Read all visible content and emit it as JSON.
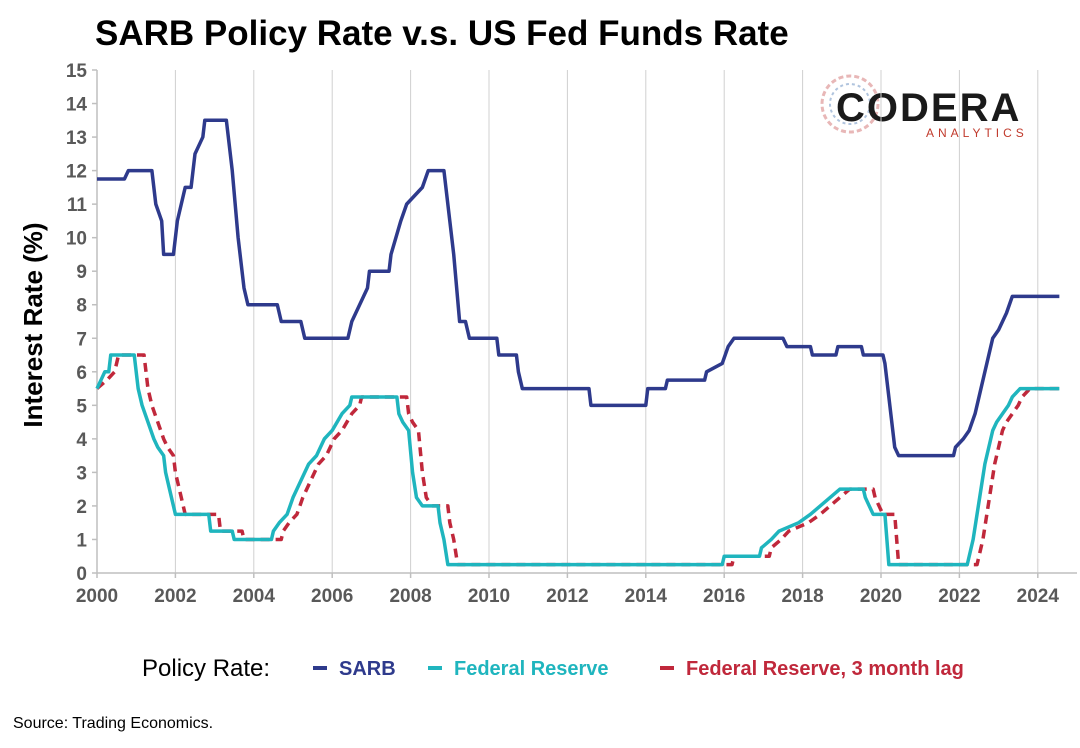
{
  "chart_data": {
    "type": "line",
    "title": "SARB Policy Rate v.s. US Fed Funds Rate",
    "ylabel": "Interest Rate (%)",
    "xlabel": "",
    "xlim": [
      2000,
      2025
    ],
    "ylim": [
      0,
      15
    ],
    "x_ticks": [
      "2000",
      "2002",
      "2004",
      "2006",
      "2008",
      "2010",
      "2012",
      "2014",
      "2016",
      "2018",
      "2020",
      "2022",
      "2024"
    ],
    "y_ticks": [
      "0",
      "1",
      "2",
      "3",
      "4",
      "5",
      "6",
      "7",
      "8",
      "9",
      "10",
      "11",
      "12",
      "13",
      "14",
      "15"
    ],
    "grid": "vertical",
    "legend": {
      "placement": "bottom",
      "prefix": "Policy Rate:",
      "entries": [
        "SARB",
        "Federal Reserve",
        "Federal Reserve, 3 month lag"
      ]
    },
    "source": "Source: Trading Economics.",
    "logo": {
      "main": "CODERA",
      "sub": "ANALYTICS"
    },
    "series": [
      {
        "name": "SARB",
        "color": "#2E3A8C",
        "style": "solid",
        "points": [
          [
            2000.0,
            11.75
          ],
          [
            2000.7,
            11.75
          ],
          [
            2000.8,
            12.0
          ],
          [
            2001.4,
            12.0
          ],
          [
            2001.5,
            11.0
          ],
          [
            2001.65,
            10.5
          ],
          [
            2001.7,
            9.5
          ],
          [
            2001.95,
            9.5
          ],
          [
            2002.05,
            10.5
          ],
          [
            2002.25,
            11.5
          ],
          [
            2002.4,
            11.5
          ],
          [
            2002.5,
            12.5
          ],
          [
            2002.7,
            13.0
          ],
          [
            2002.75,
            13.5
          ],
          [
            2003.3,
            13.5
          ],
          [
            2003.45,
            12.0
          ],
          [
            2003.6,
            10.0
          ],
          [
            2003.75,
            8.5
          ],
          [
            2003.85,
            8.0
          ],
          [
            2004.6,
            8.0
          ],
          [
            2004.7,
            7.5
          ],
          [
            2005.2,
            7.5
          ],
          [
            2005.3,
            7.0
          ],
          [
            2006.4,
            7.0
          ],
          [
            2006.5,
            7.5
          ],
          [
            2006.7,
            8.0
          ],
          [
            2006.9,
            8.5
          ],
          [
            2006.95,
            9.0
          ],
          [
            2007.45,
            9.0
          ],
          [
            2007.5,
            9.5
          ],
          [
            2007.75,
            10.5
          ],
          [
            2007.9,
            11.0
          ],
          [
            2008.3,
            11.5
          ],
          [
            2008.45,
            12.0
          ],
          [
            2008.85,
            12.0
          ],
          [
            2009.0,
            10.5
          ],
          [
            2009.1,
            9.5
          ],
          [
            2009.25,
            7.5
          ],
          [
            2009.4,
            7.5
          ],
          [
            2009.5,
            7.0
          ],
          [
            2010.2,
            7.0
          ],
          [
            2010.25,
            6.5
          ],
          [
            2010.7,
            6.5
          ],
          [
            2010.75,
            6.0
          ],
          [
            2010.85,
            5.5
          ],
          [
            2012.55,
            5.5
          ],
          [
            2012.6,
            5.0
          ],
          [
            2014.0,
            5.0
          ],
          [
            2014.05,
            5.5
          ],
          [
            2014.5,
            5.5
          ],
          [
            2014.55,
            5.75
          ],
          [
            2015.5,
            5.75
          ],
          [
            2015.55,
            6.0
          ],
          [
            2015.95,
            6.25
          ],
          [
            2016.1,
            6.75
          ],
          [
            2016.25,
            7.0
          ],
          [
            2017.5,
            7.0
          ],
          [
            2017.6,
            6.75
          ],
          [
            2018.2,
            6.75
          ],
          [
            2018.25,
            6.5
          ],
          [
            2018.85,
            6.5
          ],
          [
            2018.9,
            6.75
          ],
          [
            2019.5,
            6.75
          ],
          [
            2019.55,
            6.5
          ],
          [
            2020.05,
            6.5
          ],
          [
            2020.1,
            6.25
          ],
          [
            2020.2,
            5.25
          ],
          [
            2020.3,
            4.25
          ],
          [
            2020.35,
            3.75
          ],
          [
            2020.45,
            3.5
          ],
          [
            2021.85,
            3.5
          ],
          [
            2021.9,
            3.75
          ],
          [
            2022.1,
            4.0
          ],
          [
            2022.25,
            4.25
          ],
          [
            2022.4,
            4.75
          ],
          [
            2022.55,
            5.5
          ],
          [
            2022.7,
            6.25
          ],
          [
            2022.85,
            7.0
          ],
          [
            2023.0,
            7.25
          ],
          [
            2023.1,
            7.5
          ],
          [
            2023.2,
            7.75
          ],
          [
            2023.35,
            8.25
          ],
          [
            2024.55,
            8.25
          ]
        ]
      },
      {
        "name": "Federal Reserve",
        "color": "#1FB5BE",
        "style": "solid",
        "points": [
          [
            2000.0,
            5.5
          ],
          [
            2000.1,
            5.75
          ],
          [
            2000.2,
            6.0
          ],
          [
            2000.3,
            6.0
          ],
          [
            2000.35,
            6.5
          ],
          [
            2000.95,
            6.5
          ],
          [
            2001.05,
            5.5
          ],
          [
            2001.15,
            5.0
          ],
          [
            2001.3,
            4.5
          ],
          [
            2001.45,
            4.0
          ],
          [
            2001.55,
            3.75
          ],
          [
            2001.7,
            3.5
          ],
          [
            2001.75,
            3.0
          ],
          [
            2001.85,
            2.5
          ],
          [
            2001.95,
            2.0
          ],
          [
            2002.0,
            1.75
          ],
          [
            2002.85,
            1.75
          ],
          [
            2002.9,
            1.25
          ],
          [
            2003.45,
            1.25
          ],
          [
            2003.5,
            1.0
          ],
          [
            2004.45,
            1.0
          ],
          [
            2004.5,
            1.25
          ],
          [
            2004.65,
            1.5
          ],
          [
            2004.85,
            1.75
          ],
          [
            2005.0,
            2.25
          ],
          [
            2005.2,
            2.75
          ],
          [
            2005.4,
            3.25
          ],
          [
            2005.6,
            3.5
          ],
          [
            2005.8,
            4.0
          ],
          [
            2006.0,
            4.25
          ],
          [
            2006.25,
            4.75
          ],
          [
            2006.45,
            5.0
          ],
          [
            2006.5,
            5.25
          ],
          [
            2007.65,
            5.25
          ],
          [
            2007.7,
            4.75
          ],
          [
            2007.8,
            4.5
          ],
          [
            2007.95,
            4.25
          ],
          [
            2008.05,
            3.0
          ],
          [
            2008.15,
            2.25
          ],
          [
            2008.3,
            2.0
          ],
          [
            2008.7,
            2.0
          ],
          [
            2008.75,
            1.5
          ],
          [
            2008.85,
            1.0
          ],
          [
            2008.95,
            0.25
          ],
          [
            2015.95,
            0.25
          ],
          [
            2016.0,
            0.5
          ],
          [
            2016.9,
            0.5
          ],
          [
            2016.95,
            0.75
          ],
          [
            2017.2,
            1.0
          ],
          [
            2017.4,
            1.25
          ],
          [
            2017.9,
            1.5
          ],
          [
            2018.2,
            1.75
          ],
          [
            2018.45,
            2.0
          ],
          [
            2018.7,
            2.25
          ],
          [
            2018.95,
            2.5
          ],
          [
            2019.55,
            2.5
          ],
          [
            2019.6,
            2.25
          ],
          [
            2019.7,
            2.0
          ],
          [
            2019.8,
            1.75
          ],
          [
            2020.1,
            1.75
          ],
          [
            2020.2,
            0.25
          ],
          [
            2022.2,
            0.25
          ],
          [
            2022.25,
            0.5
          ],
          [
            2022.35,
            1.0
          ],
          [
            2022.45,
            1.75
          ],
          [
            2022.55,
            2.5
          ],
          [
            2022.65,
            3.25
          ],
          [
            2022.75,
            3.75
          ],
          [
            2022.85,
            4.25
          ],
          [
            2022.95,
            4.5
          ],
          [
            2023.1,
            4.75
          ],
          [
            2023.25,
            5.0
          ],
          [
            2023.35,
            5.25
          ],
          [
            2023.55,
            5.5
          ],
          [
            2024.55,
            5.5
          ]
        ]
      },
      {
        "name": "Federal Reserve, 3 month lag",
        "color": "#C0283B",
        "style": "dashed",
        "points": [
          [
            2000.0,
            5.5
          ],
          [
            2000.25,
            5.75
          ],
          [
            2000.45,
            6.0
          ],
          [
            2000.55,
            6.5
          ],
          [
            2001.2,
            6.5
          ],
          [
            2001.3,
            5.5
          ],
          [
            2001.4,
            5.0
          ],
          [
            2001.55,
            4.5
          ],
          [
            2001.7,
            4.0
          ],
          [
            2001.8,
            3.75
          ],
          [
            2001.95,
            3.5
          ],
          [
            2002.0,
            3.0
          ],
          [
            2002.1,
            2.5
          ],
          [
            2002.2,
            2.0
          ],
          [
            2002.25,
            1.75
          ],
          [
            2003.1,
            1.75
          ],
          [
            2003.15,
            1.25
          ],
          [
            2003.7,
            1.25
          ],
          [
            2003.75,
            1.0
          ],
          [
            2004.7,
            1.0
          ],
          [
            2004.75,
            1.25
          ],
          [
            2004.9,
            1.5
          ],
          [
            2005.1,
            1.75
          ],
          [
            2005.25,
            2.25
          ],
          [
            2005.45,
            2.75
          ],
          [
            2005.65,
            3.25
          ],
          [
            2005.85,
            3.5
          ],
          [
            2006.05,
            4.0
          ],
          [
            2006.25,
            4.25
          ],
          [
            2006.5,
            4.75
          ],
          [
            2006.7,
            5.0
          ],
          [
            2006.75,
            5.25
          ],
          [
            2007.9,
            5.25
          ],
          [
            2007.95,
            4.75
          ],
          [
            2008.05,
            4.5
          ],
          [
            2008.2,
            4.25
          ],
          [
            2008.3,
            3.0
          ],
          [
            2008.4,
            2.25
          ],
          [
            2008.55,
            2.0
          ],
          [
            2008.95,
            2.0
          ],
          [
            2009.0,
            1.5
          ],
          [
            2009.1,
            1.0
          ],
          [
            2009.2,
            0.25
          ],
          [
            2016.2,
            0.25
          ],
          [
            2016.25,
            0.5
          ],
          [
            2017.15,
            0.5
          ],
          [
            2017.2,
            0.75
          ],
          [
            2017.45,
            1.0
          ],
          [
            2017.65,
            1.25
          ],
          [
            2018.15,
            1.5
          ],
          [
            2018.45,
            1.75
          ],
          [
            2018.7,
            2.0
          ],
          [
            2018.95,
            2.25
          ],
          [
            2019.2,
            2.5
          ],
          [
            2019.8,
            2.5
          ],
          [
            2019.85,
            2.25
          ],
          [
            2019.95,
            2.0
          ],
          [
            2020.05,
            1.75
          ],
          [
            2020.35,
            1.75
          ],
          [
            2020.45,
            0.25
          ],
          [
            2022.45,
            0.25
          ],
          [
            2022.5,
            0.5
          ],
          [
            2022.6,
            1.0
          ],
          [
            2022.7,
            1.75
          ],
          [
            2022.8,
            2.5
          ],
          [
            2022.9,
            3.25
          ],
          [
            2023.0,
            3.75
          ],
          [
            2023.1,
            4.25
          ],
          [
            2023.2,
            4.5
          ],
          [
            2023.35,
            4.75
          ],
          [
            2023.5,
            5.0
          ],
          [
            2023.6,
            5.25
          ],
          [
            2023.8,
            5.5
          ],
          [
            2024.55,
            5.5
          ]
        ]
      }
    ]
  }
}
